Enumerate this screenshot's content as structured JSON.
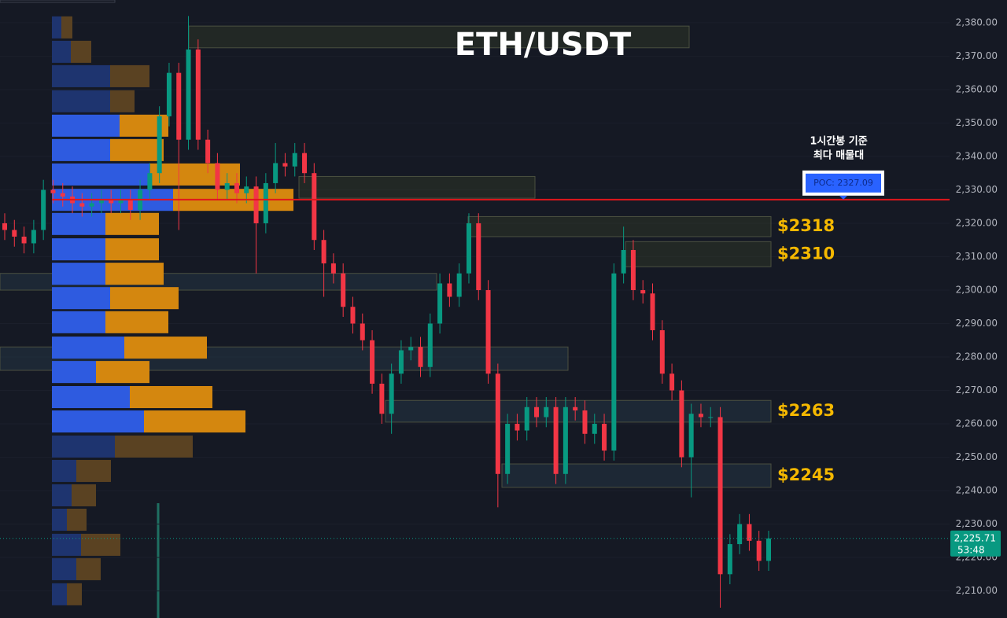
{
  "chart_data": {
    "type": "candlestick",
    "title": "ETH/USDT",
    "annotation": [
      "1시간봉 기준",
      "최다 매물대"
    ],
    "categories": [
      null,
      null,
      null,
      null,
      null,
      null,
      null,
      null,
      null,
      null,
      null,
      null,
      null,
      null,
      null,
      null,
      null,
      null,
      null,
      null,
      null,
      null,
      null,
      null,
      null,
      null,
      null,
      null,
      null,
      null,
      null,
      null,
      null,
      null,
      null,
      null,
      null,
      null,
      null,
      null,
      null,
      null,
      null,
      null,
      null,
      null,
      null,
      null,
      null,
      null,
      null,
      null,
      null,
      null,
      null,
      null,
      null,
      null,
      null,
      null,
      null,
      null,
      null,
      null,
      null,
      null,
      null,
      null,
      null,
      null,
      null,
      null,
      null,
      null,
      null,
      null,
      null,
      null,
      null,
      null
    ],
    "open": [
      2320,
      2318,
      2316,
      2314,
      2318,
      2330,
      2329,
      2328,
      2326,
      2325,
      2326,
      2327,
      2326,
      2327,
      2324,
      2330,
      2335,
      2352,
      2365,
      2345,
      2372,
      2345,
      2338,
      2330,
      2332,
      2329,
      2331,
      2320,
      2332,
      2338,
      2337,
      2341,
      2335,
      2315,
      2308,
      2305,
      2295,
      2290,
      2285,
      2272,
      2263,
      2275,
      2282,
      2283,
      2277,
      2290,
      2302,
      2298,
      2305,
      2320,
      2300,
      2275,
      2245,
      2260,
      2258,
      2265,
      2262,
      2265,
      2245,
      2265,
      2264,
      2257,
      2260,
      2252,
      2305,
      2312,
      2300,
      2299,
      2288,
      2275,
      2270,
      2250,
      2263,
      2262,
      2262,
      2215,
      2224,
      2230,
      2225,
      2219
    ],
    "high": [
      2323,
      2321,
      2319,
      2321,
      2333,
      2333,
      2332,
      2331,
      2329,
      2329,
      2330,
      2330,
      2330,
      2330,
      2333,
      2338,
      2355,
      2368,
      2368,
      2382,
      2375,
      2348,
      2341,
      2335,
      2335,
      2334,
      2334,
      2335,
      2344,
      2341,
      2344,
      2344,
      2338,
      2318,
      2311,
      2308,
      2298,
      2293,
      2288,
      2275,
      2278,
      2285,
      2286,
      2286,
      2293,
      2305,
      2305,
      2308,
      2323,
      2323,
      2303,
      2278,
      2263,
      2263,
      2268,
      2268,
      2268,
      2268,
      2268,
      2268,
      2267,
      2263,
      2263,
      2308,
      2319,
      2315,
      2303,
      2302,
      2291,
      2278,
      2273,
      2266,
      2266,
      2265,
      2265,
      2227,
      2233,
      2233,
      2228,
      2228
    ],
    "low": [
      2315,
      2313,
      2311,
      2311,
      2315,
      2326,
      2325,
      2323,
      2322,
      2322,
      2323,
      2323,
      2323,
      2321,
      2321,
      2327,
      2332,
      2349,
      2318,
      2342,
      2342,
      2335,
      2327,
      2327,
      2326,
      2326,
      2305,
      2317,
      2329,
      2334,
      2334,
      2332,
      2312,
      2298,
      2302,
      2292,
      2287,
      2282,
      2269,
      2260,
      2257,
      2272,
      2279,
      2274,
      2274,
      2287,
      2295,
      2295,
      2302,
      2297,
      2272,
      2235,
      2242,
      2255,
      2255,
      2259,
      2259,
      2242,
      2242,
      2261,
      2254,
      2254,
      2249,
      2249,
      2302,
      2297,
      2296,
      2285,
      2272,
      2267,
      2247,
      2238,
      2259,
      2259,
      2205,
      2212,
      2221,
      2222,
      2216,
      2216
    ],
    "close": [
      2318,
      2316,
      2314,
      2318,
      2330,
      2329,
      2328,
      2326,
      2325,
      2326,
      2327,
      2326,
      2327,
      2324,
      2330,
      2335,
      2352,
      2365,
      2345,
      2372,
      2345,
      2338,
      2330,
      2332,
      2329,
      2331,
      2320,
      2332,
      2338,
      2337,
      2341,
      2335,
      2315,
      2308,
      2305,
      2295,
      2290,
      2285,
      2272,
      2263,
      2275,
      2282,
      2283,
      2277,
      2290,
      2302,
      2298,
      2305,
      2320,
      2300,
      2275,
      2245,
      2260,
      2258,
      2265,
      2262,
      2265,
      2245,
      2265,
      2264,
      2257,
      2260,
      2252,
      2305,
      2312,
      2300,
      2299,
      2288,
      2275,
      2270,
      2250,
      2263,
      2262,
      2262,
      2215,
      2224,
      2230,
      2225,
      2219,
      2225.71
    ],
    "up_color": "#089981",
    "down_color": "#f23645",
    "ylim": [
      2201.9,
      2386.8
    ],
    "yticks": [
      {
        "value": 2210,
        "label": "2,210.00"
      },
      {
        "value": 2220,
        "label": "2,220.00"
      },
      {
        "value": 2230,
        "label": "2,230.00"
      },
      {
        "value": 2240,
        "label": "2,240.00"
      },
      {
        "value": 2250,
        "label": "2,250.00"
      },
      {
        "value": 2260,
        "label": "2,260.00"
      },
      {
        "value": 2270,
        "label": "2,270.00"
      },
      {
        "value": 2280,
        "label": "2,280.00"
      },
      {
        "value": 2290,
        "label": "2,290.00"
      },
      {
        "value": 2300,
        "label": "2,300.00"
      },
      {
        "value": 2310,
        "label": "2,310.00"
      },
      {
        "value": 2320,
        "label": "2,320.00"
      },
      {
        "value": 2330,
        "label": "2,330.00"
      },
      {
        "value": 2340,
        "label": "2,340.00"
      },
      {
        "value": 2350,
        "label": "2,350.00"
      },
      {
        "value": 2360,
        "label": "2,360.00"
      },
      {
        "value": 2370,
        "label": "2,370.00"
      },
      {
        "value": 2380,
        "label": "2,380.00"
      }
    ],
    "poc": {
      "value": 2327.09,
      "label": "POC: 2327.09",
      "color": "#e0161b"
    },
    "last_price": {
      "value": 2225.71,
      "label": "2,225.71",
      "countdown": "53:48",
      "color": "#089981"
    },
    "volume_profile": {
      "levels": [
        2378.6,
        2371.3,
        2364.0,
        2356.5,
        2349.2,
        2341.9,
        2334.6,
        2327.0,
        2319.8,
        2312.2,
        2304.9,
        2297.6,
        2290.4,
        2282.8,
        2275.5,
        2268.0,
        2260.7,
        2253.2,
        2245.9,
        2238.6,
        2231.3,
        2223.8,
        2216.5,
        2209.0
      ],
      "value_area": [
        2260.7,
        2349.2
      ],
      "series": [
        {
          "name": "buy",
          "color": "#2e5be0",
          "dim_color": "#1e346f",
          "values": [
            12,
            24,
            74,
            74,
            86,
            74,
            124,
            154,
            68,
            68,
            68,
            74,
            68,
            92,
            56,
            99,
            117,
            80,
            31,
            25,
            19,
            37,
            31,
            19
          ]
        },
        {
          "name": "sell",
          "color": "#d4870f",
          "dim_color": "#5a4222",
          "values": [
            14,
            26,
            50,
            31,
            62,
            68,
            115,
            153,
            68,
            68,
            74,
            87,
            80,
            105,
            68,
            105,
            129,
            99,
            44,
            31,
            25,
            50,
            31,
            19
          ]
        }
      ]
    },
    "zones": [
      {
        "low": 2372.5,
        "high": 2379
      },
      {
        "low": 2327.5,
        "high": 2334
      },
      {
        "low": 2316,
        "high": 2322,
        "label": "$2318"
      },
      {
        "low": 2307,
        "high": 2314.5,
        "label": "$2310"
      },
      {
        "low": 2300,
        "high": 2305
      },
      {
        "low": 2276,
        "high": 2283
      },
      {
        "low": 2260.5,
        "high": 2267,
        "label": "$2263"
      },
      {
        "low": 2241,
        "high": 2248,
        "label": "$2245"
      }
    ]
  }
}
